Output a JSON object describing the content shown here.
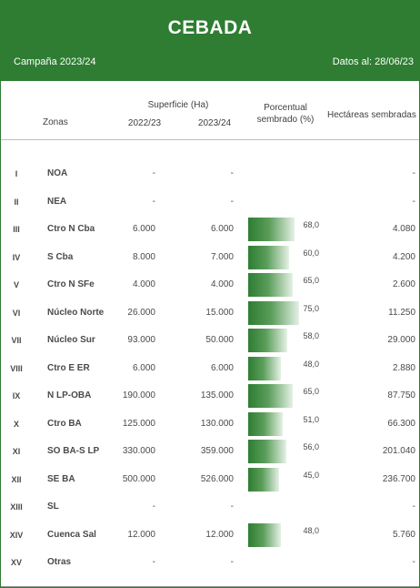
{
  "header": {
    "title": "CEBADA",
    "campaign": "Campaña 2023/24",
    "date": "Datos al: 28/06/23"
  },
  "columns": {
    "zones": "Zonas",
    "surface": "Superficie (Ha)",
    "year1": "2022/23",
    "year2": "2023/24",
    "percent_line1": "Porcentual",
    "percent_line2": "sembrado (%)",
    "hectares": "Hectáreas sembradas"
  },
  "rows": [
    {
      "roman": "I",
      "zone": "NOA",
      "s2022": "-",
      "s2023": "-",
      "pct": "",
      "pct_value": null,
      "hectares": "-"
    },
    {
      "roman": "II",
      "zone": "NEA",
      "s2022": "-",
      "s2023": "-",
      "pct": "",
      "pct_value": null,
      "hectares": "-"
    },
    {
      "roman": "III",
      "zone": "Ctro N Cba",
      "s2022": "6.000",
      "s2023": "6.000",
      "pct": "68,0",
      "pct_value": 68,
      "hectares": "4.080"
    },
    {
      "roman": "IV",
      "zone": "S Cba",
      "s2022": "8.000",
      "s2023": "7.000",
      "pct": "60,0",
      "pct_value": 60,
      "hectares": "4.200"
    },
    {
      "roman": "V",
      "zone": "Ctro N SFe",
      "s2022": "4.000",
      "s2023": "4.000",
      "pct": "65,0",
      "pct_value": 65,
      "hectares": "2.600"
    },
    {
      "roman": "VI",
      "zone": "Núcleo Norte",
      "s2022": "26.000",
      "s2023": "15.000",
      "pct": "75,0",
      "pct_value": 75,
      "hectares": "11.250"
    },
    {
      "roman": "VII",
      "zone": "Núcleo Sur",
      "s2022": "93.000",
      "s2023": "50.000",
      "pct": "58,0",
      "pct_value": 58,
      "hectares": "29.000"
    },
    {
      "roman": "VIII",
      "zone": "Ctro E ER",
      "s2022": "6.000",
      "s2023": "6.000",
      "pct": "48,0",
      "pct_value": 48,
      "hectares": "2.880"
    },
    {
      "roman": "IX",
      "zone": "N LP-OBA",
      "s2022": "190.000",
      "s2023": "135.000",
      "pct": "65,0",
      "pct_value": 65,
      "hectares": "87.750"
    },
    {
      "roman": "X",
      "zone": "Ctro BA",
      "s2022": "125.000",
      "s2023": "130.000",
      "pct": "51,0",
      "pct_value": 51,
      "hectares": "66.300"
    },
    {
      "roman": "XI",
      "zone": "SO BA-S LP",
      "s2022": "330.000",
      "s2023": "359.000",
      "pct": "56,0",
      "pct_value": 56,
      "hectares": "201.040"
    },
    {
      "roman": "XII",
      "zone": "SE BA",
      "s2022": "500.000",
      "s2023": "526.000",
      "pct": "45,0",
      "pct_value": 45,
      "hectares": "236.700"
    },
    {
      "roman": "XIII",
      "zone": "SL",
      "s2022": "-",
      "s2023": "-",
      "pct": "",
      "pct_value": null,
      "hectares": "-"
    },
    {
      "roman": "XIV",
      "zone": "Cuenca Sal",
      "s2022": "12.000",
      "s2023": "12.000",
      "pct": "48,0",
      "pct_value": 48,
      "hectares": "5.760"
    },
    {
      "roman": "XV",
      "zone": "Otras",
      "s2022": "-",
      "s2023": "-",
      "pct": "",
      "pct_value": null,
      "hectares": "-"
    }
  ],
  "colors": {
    "banner": "#2e7d32",
    "bar_start": "#2e7d32",
    "bar_end": "#e6f1e6"
  }
}
